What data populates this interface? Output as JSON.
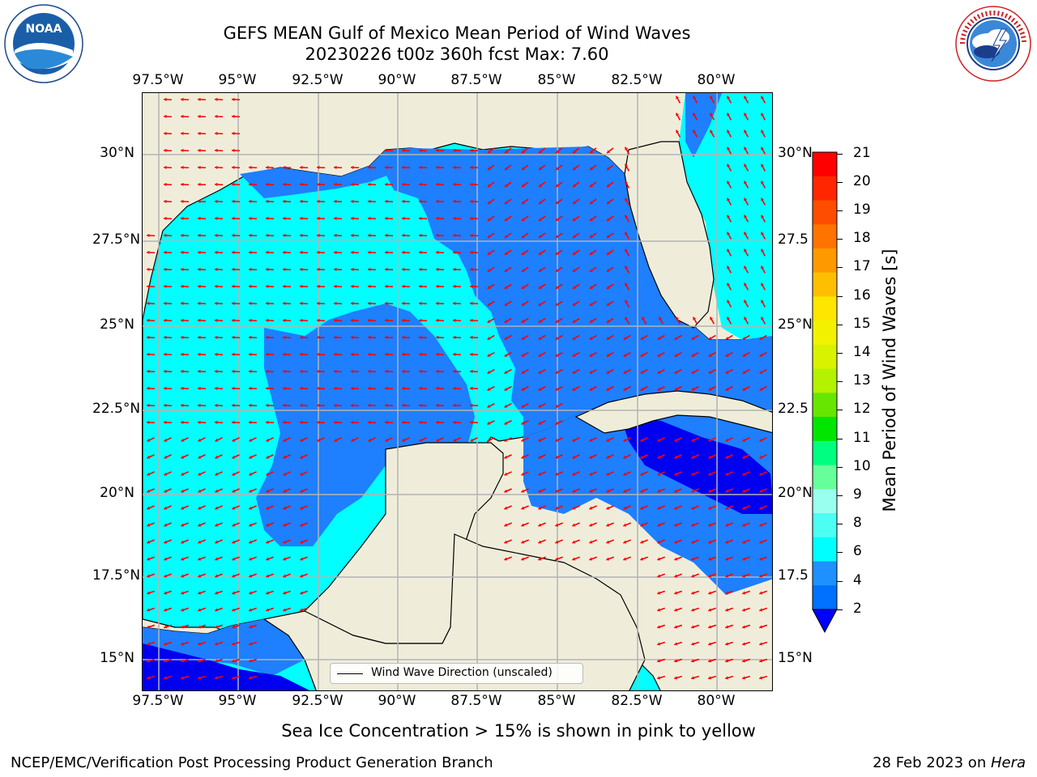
{
  "header": {
    "title_line1": "GEFS MEAN Gulf of Mexico Mean Period of Wind Waves",
    "title_line2": "20230226 t00z 360h fcst   Max: 7.60"
  },
  "logos": {
    "left": {
      "name": "noaa-logo",
      "text": "NOAA",
      "ring_text": "NATIONAL OCEANIC AND ATMOSPHERIC ADMINISTRATION · U.S. DEPARTMENT OF COMMERCE"
    },
    "right": {
      "name": "nws-logo",
      "ring_text": "NATIONAL WEATHER SERVICE"
    }
  },
  "axes": {
    "lon_ticks": [
      "97.5°W",
      "95°W",
      "92.5°W",
      "90°W",
      "87.5°W",
      "85°W",
      "82.5°W",
      "80°W"
    ],
    "lat_ticks_left": [
      "30°N",
      "27.5°N",
      "25°N",
      "22.5°N",
      "20°N",
      "17.5°N",
      "15°N"
    ],
    "lat_ticks_right": [
      "30°N",
      "27.5",
      "25°N",
      "22.5",
      "20°N",
      "17.5",
      "15°N"
    ]
  },
  "colorbar": {
    "label": "Mean Period of Wind Waves [s]",
    "ticks": [
      "21",
      "20",
      "19",
      "18",
      "17",
      "16",
      "15",
      "14",
      "13",
      "12",
      "11",
      "10",
      "9",
      "8",
      "6",
      "4",
      "2"
    ],
    "colors": [
      "#ff0000",
      "#ff2600",
      "#ff4d00",
      "#ff7300",
      "#ff9900",
      "#ffbf00",
      "#ffe600",
      "#f2f200",
      "#d9f200",
      "#b3f200",
      "#66e600",
      "#00e600",
      "#00ff80",
      "#66ff99",
      "#99ffee",
      "#4dfff2",
      "#00ffff",
      "#1e90ff",
      "#0070ff"
    ],
    "under_color": "#0000ff"
  },
  "legend": {
    "label": "Wind Wave Direction (unscaled)"
  },
  "subtitle": "Sea Ice Concentration > 15% is shown in pink to yellow",
  "footer": {
    "left": "NCEP/EMC/Verification Post Processing Product Generation Branch",
    "right_prefix": "28 Feb 2023 on ",
    "right_italic": "Hera"
  },
  "map_colors": {
    "land": "#efedda",
    "cyan": "#00ffff",
    "blue": "#1e7fff",
    "dark_blue": "#0000f0",
    "arrow": "#ff0000",
    "grid": "#b4b4b4"
  }
}
